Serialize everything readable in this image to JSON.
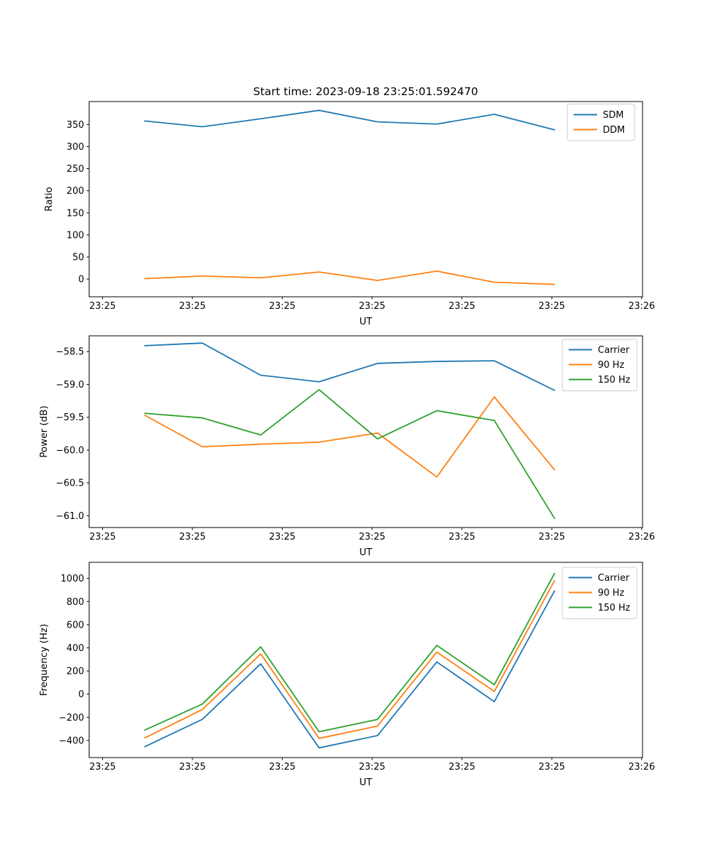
{
  "figure": {
    "title": "Start time: 2023-09-18 23:25:01.592470",
    "background": "#ffffff",
    "text_color": "#000000",
    "legend_border_color": "#cccccc"
  },
  "x_axis": {
    "label": "UT",
    "tick_values": [
      0,
      10,
      20,
      30,
      40,
      50,
      60
    ],
    "tick_labels": [
      "23:25",
      "23:25",
      "23:25",
      "23:25",
      "23:25",
      "23:25",
      "23:26"
    ],
    "xlim": [
      -1.5,
      60.1
    ]
  },
  "chart_data": [
    {
      "type": "line",
      "title": "Start time: 2023-09-18 23:25:01.592470",
      "xlabel": "UT",
      "ylabel": "Ratio",
      "x": [
        4.7,
        11.1,
        17.6,
        24.1,
        30.6,
        37.2,
        43.6,
        50.3
      ],
      "x_tick_labels": [
        "23:25",
        "23:25",
        "23:25",
        "23:25",
        "23:25",
        "23:25",
        "23:26"
      ],
      "series": [
        {
          "name": "SDM",
          "color": "#1f77b4",
          "values": [
            358,
            345,
            363,
            382,
            356,
            351,
            373,
            338
          ]
        },
        {
          "name": "DDM",
          "color": "#ff7f0e",
          "values": [
            1,
            7,
            3,
            16,
            -3,
            18,
            -7,
            -12
          ]
        }
      ],
      "ylim": [
        -40,
        402
      ],
      "ytick_values": [
        0,
        50,
        100,
        150,
        200,
        250,
        300,
        350
      ],
      "ytick_labels": [
        "0",
        "50",
        "100",
        "150",
        "200",
        "250",
        "300",
        "350"
      ],
      "legend_position": "upper right",
      "grid": false
    },
    {
      "type": "line",
      "title": "",
      "xlabel": "UT",
      "ylabel": "Power (dB)",
      "x": [
        4.7,
        11.1,
        17.6,
        24.1,
        30.6,
        37.2,
        43.6,
        50.3
      ],
      "x_tick_labels": [
        "23:25",
        "23:25",
        "23:25",
        "23:25",
        "23:25",
        "23:25",
        "23:26"
      ],
      "series": [
        {
          "name": "Carrier",
          "color": "#1f77b4",
          "values": [
            -58.41,
            -58.37,
            -58.86,
            -58.96,
            -58.68,
            -58.65,
            -58.64,
            -59.09
          ]
        },
        {
          "name": "90 Hz",
          "color": "#ff7f0e",
          "values": [
            -59.47,
            -59.95,
            -59.91,
            -59.88,
            -59.74,
            -60.41,
            -59.19,
            -60.3
          ]
        },
        {
          "name": "150 Hz",
          "color": "#2ca02c",
          "values": [
            -59.44,
            -59.51,
            -59.77,
            -59.08,
            -59.83,
            -59.4,
            -59.55,
            -61.04
          ]
        }
      ],
      "ylim": [
        -61.18,
        -58.26
      ],
      "ytick_values": [
        -61.0,
        -60.5,
        -60.0,
        -59.5,
        -59.0,
        -58.5
      ],
      "ytick_labels": [
        "−61.0",
        "−60.5",
        "−60.0",
        "−59.5",
        "−59.0",
        "−58.5"
      ],
      "legend_position": "upper right",
      "grid": false
    },
    {
      "type": "line",
      "title": "",
      "xlabel": "UT",
      "ylabel": "Frequency (Hz)",
      "x": [
        4.7,
        11.1,
        17.6,
        24.1,
        30.6,
        37.2,
        43.6,
        50.3
      ],
      "x_tick_labels": [
        "23:25",
        "23:25",
        "23:25",
        "23:25",
        "23:25",
        "23:25",
        "23:26"
      ],
      "series": [
        {
          "name": "Carrier",
          "color": "#1f77b4",
          "values": [
            -454,
            -218,
            262,
            -464,
            -358,
            278,
            -65,
            892
          ]
        },
        {
          "name": "90 Hz",
          "color": "#ff7f0e",
          "values": [
            -378,
            -133,
            348,
            -382,
            -276,
            364,
            23,
            981
          ]
        },
        {
          "name": "150 Hz",
          "color": "#2ca02c",
          "values": [
            -310,
            -86,
            409,
            -325,
            -218,
            421,
            82,
            1043
          ]
        }
      ],
      "ylim": [
        -548,
        1139
      ],
      "ytick_values": [
        -400,
        -200,
        0,
        200,
        400,
        600,
        800,
        1000
      ],
      "ytick_labels": [
        "−400",
        "−200",
        "0",
        "200",
        "400",
        "600",
        "800",
        "1000"
      ],
      "legend_position": "upper right",
      "grid": false
    }
  ]
}
